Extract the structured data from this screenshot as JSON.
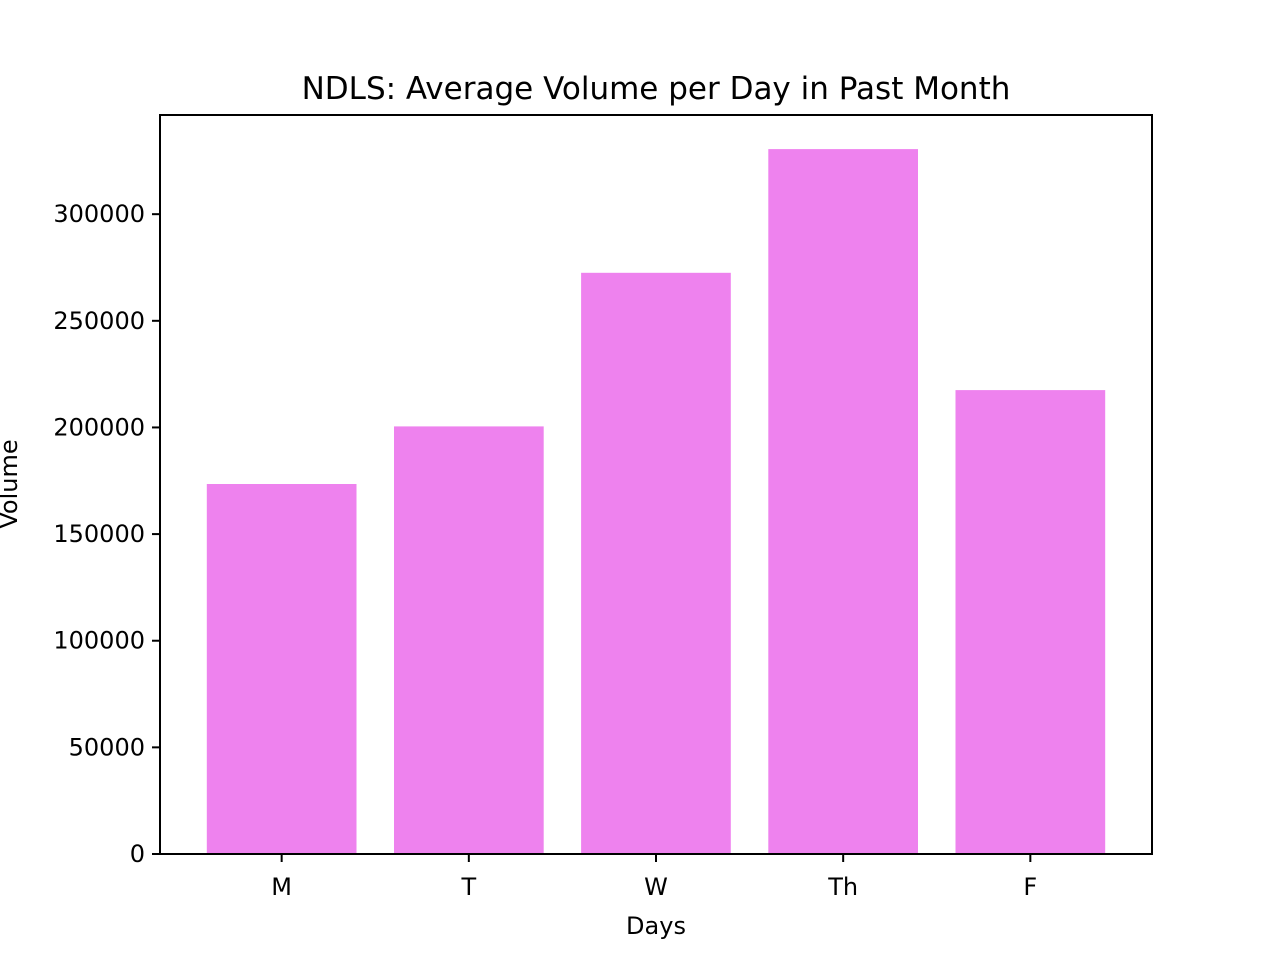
{
  "chart_data": {
    "type": "bar",
    "title": "NDLS: Average Volume per Day in Past Month",
    "xlabel": "Days",
    "ylabel": "Volume",
    "categories": [
      "M",
      "T",
      "W",
      "Th",
      "F"
    ],
    "values": [
      173500,
      200500,
      272500,
      330500,
      217500
    ],
    "ylim": [
      0,
      346500
    ],
    "yticks": [
      0,
      50000,
      100000,
      150000,
      200000,
      250000,
      300000
    ],
    "ytick_labels": [
      "0",
      "50000",
      "100000",
      "150000",
      "200000",
      "250000",
      "300000"
    ],
    "bar_color": "#ee82ee",
    "grid": false,
    "legend": "none"
  }
}
